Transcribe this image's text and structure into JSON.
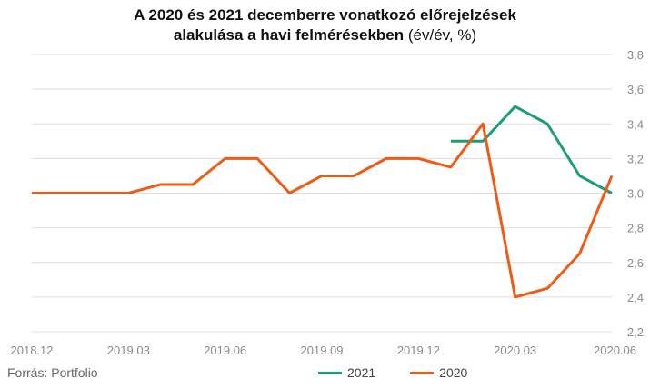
{
  "title": {
    "line1": "A 2020 és 2021 decemberre vonatkozó előrejelzések",
    "line2_bold": "alakulása a havi felmérésekben",
    "line2_unit": " (év/év, %)"
  },
  "source": "Forrás: Portfolio",
  "colors": {
    "series_2021": "#1a9e78",
    "series_2020": "#f05a14",
    "grid": "#dddddd",
    "tick": "#8a8a8a"
  },
  "chart_data": {
    "type": "line",
    "x": [
      "2018.12",
      "2019.01",
      "2019.02",
      "2019.03",
      "2019.04",
      "2019.05",
      "2019.06",
      "2019.07",
      "2019.08",
      "2019.09",
      "2019.10",
      "2019.11",
      "2019.12",
      "2020.01",
      "2020.02",
      "2020.03",
      "2020.04",
      "2020.05",
      "2020.06"
    ],
    "x_tick_labels": [
      "2018.12",
      "2019.03",
      "2019.06",
      "2019.09",
      "2019.12",
      "2020.03",
      "2020.06"
    ],
    "y_tick_labels": [
      "2,2",
      "2,4",
      "2,6",
      "2,8",
      "3,0",
      "3,2",
      "3,4",
      "3,6",
      "3,8"
    ],
    "ylim": [
      2.2,
      3.8
    ],
    "y_axis_side": "right",
    "grid": true,
    "legend_position": "bottom",
    "series": [
      {
        "name": "2021",
        "color_key": "series_2021",
        "values": [
          null,
          null,
          null,
          null,
          null,
          null,
          null,
          null,
          null,
          null,
          null,
          null,
          null,
          3.3,
          3.3,
          3.5,
          3.4,
          3.1,
          3.0
        ]
      },
      {
        "name": "2020",
        "color_key": "series_2020",
        "values": [
          3.0,
          3.0,
          3.0,
          3.0,
          3.05,
          3.05,
          3.2,
          3.2,
          3.0,
          3.1,
          3.1,
          3.2,
          3.2,
          3.15,
          3.4,
          2.4,
          2.45,
          2.65,
          3.1
        ]
      }
    ]
  }
}
